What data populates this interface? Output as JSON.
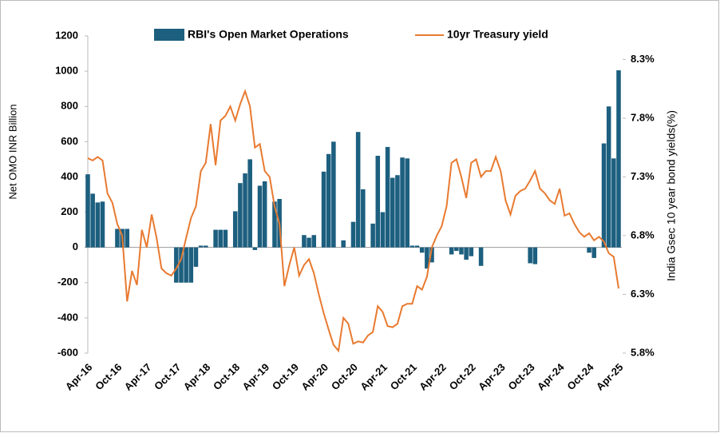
{
  "chart_data": {
    "type": "bar_line",
    "y_label": "Net OMO INR Billion",
    "y2_label": "India Gsec 10 year bond yields(%)",
    "categories": [
      "Apr-16",
      null,
      null,
      null,
      null,
      null,
      "Oct-16",
      null,
      null,
      null,
      null,
      null,
      "Apr-17",
      null,
      null,
      null,
      null,
      null,
      "Oct-17",
      null,
      null,
      null,
      null,
      null,
      "Apr-18",
      null,
      null,
      null,
      null,
      null,
      "Oct-18",
      null,
      null,
      null,
      null,
      null,
      "Apr-19",
      null,
      null,
      null,
      null,
      null,
      "Oct-19",
      null,
      null,
      null,
      null,
      null,
      "Apr-20",
      null,
      null,
      null,
      null,
      null,
      "Oct-20",
      null,
      null,
      null,
      null,
      null,
      "Apr-21",
      null,
      null,
      null,
      null,
      null,
      "Oct-21",
      null,
      null,
      null,
      null,
      null,
      "Apr-22",
      null,
      null,
      null,
      null,
      null,
      "Oct-22",
      null,
      null,
      null,
      null,
      null,
      "Apr-23",
      null,
      null,
      null,
      null,
      null,
      "Oct-23",
      null,
      null,
      null,
      null,
      null,
      "Apr-24",
      null,
      null,
      null,
      null,
      null,
      "Oct-24",
      null,
      null,
      null,
      null,
      null,
      "Apr-25"
    ],
    "series": [
      {
        "name": "RBI's Open Market Operations",
        "type": "bar",
        "color": "#1d5f7f",
        "values": [
          415,
          305,
          255,
          260,
          0,
          0,
          105,
          105,
          105,
          0,
          0,
          0,
          0,
          0,
          0,
          0,
          0,
          0,
          -200,
          -200,
          -200,
          -200,
          -110,
          10,
          10,
          0,
          100,
          100,
          100,
          0,
          205,
          365,
          420,
          500,
          -15,
          350,
          375,
          0,
          260,
          275,
          0,
          0,
          0,
          0,
          70,
          55,
          70,
          0,
          430,
          530,
          600,
          0,
          40,
          0,
          145,
          655,
          330,
          0,
          135,
          520,
          200,
          570,
          395,
          410,
          510,
          505,
          10,
          10,
          -30,
          -120,
          -85,
          0,
          0,
          0,
          -40,
          -20,
          -40,
          -70,
          -50,
          0,
          -105,
          0,
          0,
          0,
          0,
          0,
          0,
          0,
          0,
          0,
          -90,
          -95,
          0,
          0,
          0,
          0,
          0,
          0,
          0,
          0,
          0,
          0,
          -30,
          -60,
          0,
          590,
          800,
          505,
          1005
        ]
      },
      {
        "name": "10yr Treasury yield",
        "type": "line",
        "axis": "y2",
        "color": "#e87a30",
        "values": [
          7.46,
          7.44,
          7.47,
          7.44,
          7.16,
          7.08,
          6.9,
          6.8,
          6.24,
          6.5,
          6.38,
          6.85,
          6.7,
          6.98,
          6.78,
          6.52,
          6.48,
          6.46,
          6.52,
          6.6,
          6.78,
          6.95,
          7.05,
          7.35,
          7.42,
          7.75,
          7.4,
          7.78,
          7.82,
          7.9,
          7.78,
          7.92,
          8.03,
          7.9,
          7.55,
          7.58,
          7.35,
          7.3,
          7.05,
          6.9,
          6.37,
          6.55,
          6.7,
          6.46,
          6.55,
          6.6,
          6.48,
          6.3,
          6.14,
          6.0,
          5.87,
          5.82,
          6.1,
          6.05,
          5.88,
          5.9,
          5.89,
          5.95,
          5.98,
          6.2,
          6.15,
          6.03,
          6.02,
          6.05,
          6.2,
          6.22,
          6.22,
          6.37,
          6.34,
          6.45,
          6.7,
          6.8,
          6.88,
          7.05,
          7.42,
          7.45,
          7.3,
          7.12,
          7.42,
          7.45,
          7.3,
          7.35,
          7.35,
          7.47,
          7.35,
          7.1,
          6.98,
          7.14,
          7.18,
          7.2,
          7.27,
          7.35,
          7.2,
          7.16,
          7.1,
          7.07,
          7.2,
          6.97,
          6.99,
          6.9,
          6.83,
          6.79,
          6.82,
          6.76,
          6.79,
          6.75,
          6.65,
          6.62,
          6.35
        ]
      }
    ],
    "ylim": [
      -600,
      1200
    ],
    "yticks": [
      -600,
      -400,
      -200,
      0,
      200,
      400,
      600,
      800,
      1000,
      1200
    ],
    "y2lim": [
      5.8,
      8.5
    ],
    "y2ticks": [
      {
        "value": 5.8,
        "label": "5.8%"
      },
      {
        "value": 6.3,
        "label": "6.3%"
      },
      {
        "value": 6.8,
        "label": "6.8%"
      },
      {
        "value": 7.3,
        "label": "7.3%"
      },
      {
        "value": 7.8,
        "label": "7.8%"
      },
      {
        "value": 8.3,
        "label": "8.3%"
      }
    ],
    "legend": "top"
  }
}
